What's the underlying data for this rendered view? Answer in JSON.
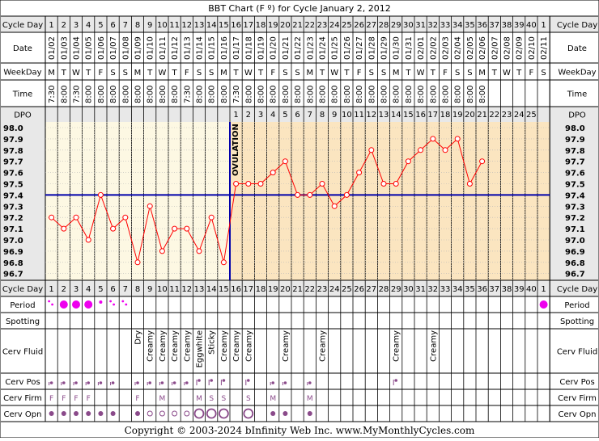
{
  "title": "BBT Chart (F º) for Cycle January 2, 2012",
  "copyright": "Copyright © 2003-2024 bInfinity Web Inc.    www.MyMonthlyCycles.com",
  "row_labels": {
    "cycle_day": "Cycle Day",
    "date": "Date",
    "weekday": "WeekDay",
    "time": "Time",
    "dpo": "DPO",
    "period": "Period",
    "spotting": "Spotting",
    "cerv_fluid": "Cerv Fluid",
    "cerv_pos": "Cerv Pos",
    "cerv_firm": "Cerv Firm",
    "cerv_opn": "Cerv Opn"
  },
  "ovulation_label": "OVULATION",
  "colors": {
    "line": "#ff0000",
    "coverline": "#0000aa",
    "ovulation": "#0000aa",
    "pre_bg": "#fdf8e3",
    "post_bg": "#fbe5c0",
    "header_bg": "#e8e8e8",
    "period": "#ee00ee",
    "marker": "#8a4a8a"
  },
  "chart_data": {
    "type": "line",
    "y_ticks": [
      "98.0",
      "97.9",
      "97.8",
      "97.7",
      "97.6",
      "97.5",
      "97.4",
      "97.3",
      "97.2",
      "97.1",
      "97.0",
      "96.9",
      "96.8",
      "96.7"
    ],
    "ylim": [
      96.7,
      98.0
    ],
    "cycle_days": [
      "1",
      "2",
      "3",
      "4",
      "5",
      "6",
      "7",
      "8",
      "9",
      "10",
      "11",
      "12",
      "13",
      "14",
      "15",
      "16",
      "17",
      "18",
      "19",
      "20",
      "21",
      "22",
      "23",
      "24",
      "25",
      "26",
      "27",
      "28",
      "29",
      "30",
      "31",
      "32",
      "33",
      "34",
      "35",
      "36",
      "37",
      "38",
      "39",
      "40",
      "1"
    ],
    "dates": [
      "01/02",
      "01/03",
      "01/04",
      "01/05",
      "01/06",
      "01/07",
      "01/08",
      "01/09",
      "01/10",
      "01/11",
      "01/12",
      "01/13",
      "01/14",
      "01/15",
      "01/16",
      "01/17",
      "01/18",
      "01/19",
      "01/20",
      "01/21",
      "01/22",
      "01/23",
      "01/24",
      "01/25",
      "01/26",
      "01/27",
      "01/28",
      "01/29",
      "01/30",
      "01/31",
      "02/01",
      "02/02",
      "02/03",
      "02/04",
      "02/05",
      "02/06",
      "02/07",
      "02/08",
      "02/09",
      "02/10",
      "02/11"
    ],
    "weekdays": [
      "M",
      "T",
      "W",
      "T",
      "F",
      "S",
      "S",
      "M",
      "T",
      "W",
      "T",
      "F",
      "S",
      "S",
      "M",
      "T",
      "W",
      "T",
      "F",
      "S",
      "S",
      "M",
      "T",
      "W",
      "T",
      "F",
      "S",
      "S",
      "M",
      "T",
      "W",
      "T",
      "F",
      "S",
      "S",
      "M",
      "T",
      "W",
      "T",
      "F",
      "S"
    ],
    "times": [
      "7:30",
      "8:00",
      "7:30",
      "8:00",
      "8:00",
      "8:00",
      "8:00",
      "8:00",
      "8:00",
      "8:00",
      "8:00",
      "7:30",
      "8:00",
      "8:00",
      "8:00",
      "7:30",
      "8:00",
      "8:00",
      "8:00",
      "8:00",
      "8:00",
      "8:00",
      "8:00",
      "8:00",
      "8:00",
      "8:00",
      "8:00",
      "8:00",
      "8:00",
      "8:00",
      "8:00",
      "8:00",
      "8:00",
      "8:00",
      "8:00",
      "8:00",
      "",
      "",
      "",
      "",
      ""
    ],
    "dpo": [
      "",
      "",
      "",
      "",
      "",
      "",
      "",
      "",
      "",
      "",
      "",
      "",
      "",
      "",
      "",
      "1",
      "2",
      "3",
      "4",
      "5",
      "6",
      "7",
      "8",
      "9",
      "10",
      "11",
      "12",
      "13",
      "14",
      "15",
      "16",
      "17",
      "18",
      "19",
      "20",
      "21",
      "22",
      "23",
      "24",
      "25",
      ""
    ],
    "temps": [
      97.2,
      97.1,
      97.2,
      97.0,
      97.4,
      97.1,
      97.2,
      96.8,
      97.3,
      96.9,
      97.1,
      97.1,
      96.9,
      97.2,
      96.8,
      97.5,
      97.5,
      97.5,
      97.6,
      97.7,
      97.4,
      97.4,
      97.5,
      97.3,
      97.4,
      97.6,
      97.8,
      97.5,
      97.5,
      97.7,
      97.8,
      97.9,
      97.8,
      97.9,
      97.5,
      97.7
    ],
    "coverline": 97.4,
    "ovulation_day": 15,
    "period": [
      "dots",
      "large",
      "large",
      "large",
      "small",
      "dots",
      "dots",
      "",
      "",
      "",
      "",
      "",
      "",
      "",
      "",
      "",
      "",
      "",
      "",
      "",
      "",
      "",
      "",
      "",
      "",
      "",
      "",
      "",
      "",
      "",
      "",
      "",
      "",
      "",
      "",
      "",
      "",
      "",
      "",
      "",
      "large"
    ],
    "cerv_fluid": [
      "",
      "",
      "",
      "",
      "",
      "",
      "",
      "Dry",
      "Creamy",
      "Creamy",
      "Creamy",
      "Creamy",
      "Eggwhite",
      "Sticky",
      "Creamy",
      "Creamy",
      "Creamy",
      "",
      "",
      "Creamy",
      "",
      "",
      "Creamy",
      "",
      "",
      "",
      "",
      "",
      "Creamy",
      "",
      "",
      "Creamy",
      "",
      "",
      "",
      "",
      "",
      "",
      "",
      "",
      ""
    ],
    "cerv_pos": [
      "low",
      "low",
      "low",
      "low",
      "low",
      "low",
      "",
      "low",
      "low",
      "low",
      "low",
      "low",
      "mid",
      "mid",
      "mid",
      "",
      "mid",
      "",
      "low",
      "low",
      "",
      "low",
      "",
      "",
      "",
      "",
      "",
      "",
      "mid",
      "",
      "",
      "",
      "",
      "",
      "",
      "",
      "",
      "",
      "",
      "",
      ""
    ],
    "cerv_firm": [
      "F",
      "F",
      "F",
      "F",
      "",
      "",
      "",
      "F",
      "",
      "M",
      "",
      "",
      "M",
      "S",
      "S",
      "",
      "S",
      "",
      "M",
      "",
      "",
      "M",
      "",
      "",
      "",
      "",
      "",
      "",
      "",
      "",
      "",
      "",
      "",
      "",
      "",
      "",
      "",
      "",
      "",
      "",
      ""
    ],
    "cerv_opn": [
      "c",
      "c",
      "c",
      "c",
      "c",
      "c",
      "",
      "c",
      "o",
      "o",
      "o",
      "o",
      "O",
      "O",
      "O",
      "",
      "O",
      "",
      "c",
      "c",
      "",
      "c",
      "",
      "",
      "",
      "",
      "",
      "",
      "",
      "",
      "",
      "",
      "",
      "",
      "",
      "",
      "",
      "",
      "",
      "",
      ""
    ]
  }
}
